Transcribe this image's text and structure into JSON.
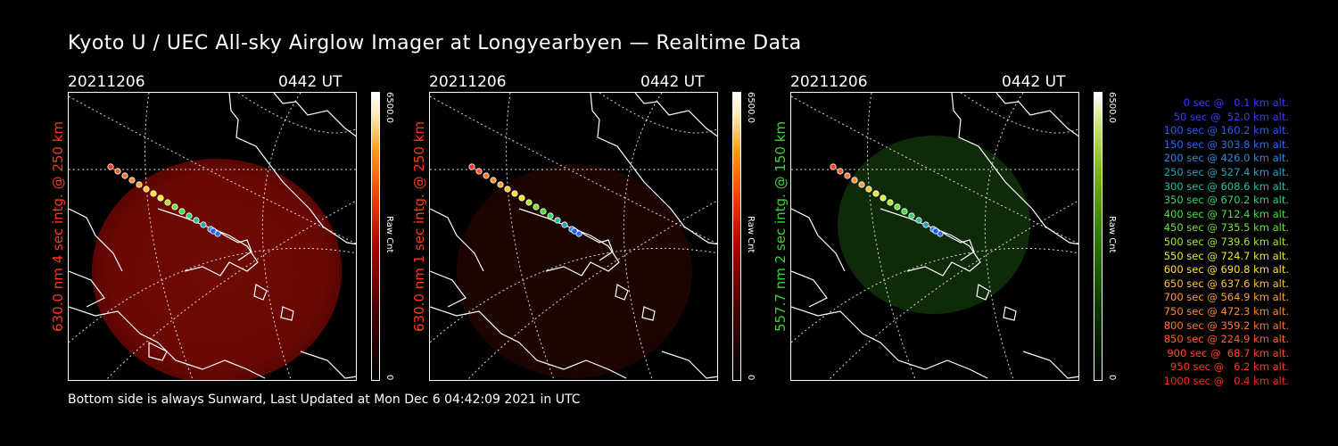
{
  "title": "Kyoto U / UEC All-sky Airglow Imager at Longyearbyen — Realtime Data",
  "footer": "Bottom side is always Sunward, Last Updated at Mon Dec  6 04:42:09 2021 in UTC",
  "panels": [
    {
      "date": "20211206",
      "time": "0442 UT",
      "side_label": "630.0 nm 4 sec intg. @ 250 km",
      "label_color": "#ff3a1a",
      "colorbar": {
        "max": "6500.0",
        "min": "0",
        "unit": "Raw Cnt"
      }
    },
    {
      "date": "20211206",
      "time": "0442 UT",
      "side_label": "630.0 nm 1 sec intg. @ 250 km",
      "label_color": "#ff3a1a",
      "colorbar": {
        "max": "6500.0",
        "min": "0",
        "unit": "Raw Cnt"
      }
    },
    {
      "date": "20211206",
      "time": "0442 UT",
      "side_label": "557.7 nm 2 sec intg. @ 150 km",
      "label_color": "#3cd23c",
      "colorbar": {
        "max": "6500.0",
        "min": "0",
        "unit": "Raw Cnt"
      }
    }
  ],
  "trajectory_legend": [
    {
      "text": "0 sec @   0.1 km alt.",
      "color": "#3a3aff"
    },
    {
      "text": "50 sec @  52.0 km alt.",
      "color": "#3a3aff"
    },
    {
      "text": "100 sec @ 160.2 km alt.",
      "color": "#2a5aff"
    },
    {
      "text": "150 sec @ 303.8 km alt.",
      "color": "#2a6aff"
    },
    {
      "text": "200 sec @ 426.0 km alt.",
      "color": "#2a8ae0"
    },
    {
      "text": "250 sec @ 527.4 km alt.",
      "color": "#2aa0c0"
    },
    {
      "text": "300 sec @ 608.6 km alt.",
      "color": "#20c0a0"
    },
    {
      "text": "350 sec @ 670.2 km alt.",
      "color": "#30d070"
    },
    {
      "text": "400 sec @ 712.4 km alt.",
      "color": "#40e040"
    },
    {
      "text": "450 sec @ 735.5 km alt.",
      "color": "#70e030"
    },
    {
      "text": "500 sec @ 739.6 km alt.",
      "color": "#a8e820"
    },
    {
      "text": "550 sec @ 724.7 km alt.",
      "color": "#e0f020"
    },
    {
      "text": "600 sec @ 690.8 km alt.",
      "color": "#ffe030"
    },
    {
      "text": "650 sec @ 637.6 km alt.",
      "color": "#ffc030"
    },
    {
      "text": "700 sec @ 564.9 km alt.",
      "color": "#ffa030"
    },
    {
      "text": "750 sec @ 472.3 km alt.",
      "color": "#ff8a30"
    },
    {
      "text": "800 sec @ 359.2 km alt.",
      "color": "#ff7430"
    },
    {
      "text": "850 sec @ 224.9 km alt.",
      "color": "#ff6030"
    },
    {
      "text": "900 sec @  68.7 km alt.",
      "color": "#ff4a28"
    },
    {
      "text": "950 sec @   6.2 km alt.",
      "color": "#ff3a20"
    },
    {
      "text": "1000 sec @   0.4 km alt.",
      "color": "#ff2a18"
    }
  ]
}
